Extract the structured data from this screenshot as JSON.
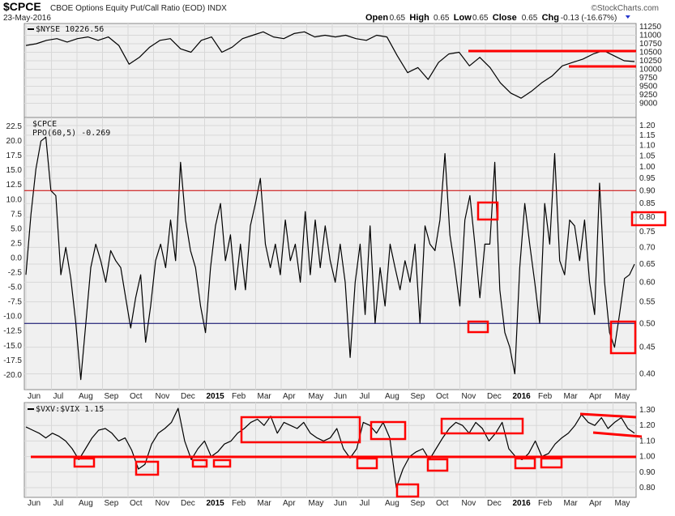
{
  "header": {
    "symbol": "$CPCE",
    "name": "CBOE Options Equity Put/Call Ratio (EOD) INDX",
    "date": "23-May-2016",
    "watermark": "©StockCharts.com",
    "open_label": "Open",
    "open": "0.65",
    "high_label": "High",
    "high": "0.65",
    "low_label": "Low",
    "low": "0.65",
    "close_label": "Close",
    "close": "0.65",
    "chg_label": "Chg",
    "chg": "-0.13 (-16.67%)"
  },
  "colors": {
    "line": "#000000",
    "annotation": "#ff0000",
    "overbought": "#cc0000",
    "oversold": "#000066",
    "panel_bg": "#f0f0f0",
    "grid": "#d8d8d8"
  },
  "chart_data": [
    {
      "type": "line",
      "title": "$NYSE 10226.56",
      "legend": "$NYSE 10226.56",
      "x_start": "2014-06-02",
      "x_end": "2016-05-23",
      "ylim": [
        8950,
        11300
      ],
      "yticks": [
        "11250",
        "11000",
        "10750",
        "10500",
        "10250",
        "10000",
        "9750",
        "9500",
        "9250",
        "9000"
      ],
      "values": [
        10700,
        10750,
        10850,
        10900,
        10800,
        10900,
        10950,
        10850,
        10950,
        10700,
        10150,
        10350,
        10650,
        10850,
        10900,
        10600,
        10500,
        10850,
        10950,
        10500,
        10650,
        10900,
        11000,
        11100,
        10950,
        10900,
        11050,
        11100,
        10950,
        11000,
        10950,
        11000,
        10900,
        10850,
        11000,
        10950,
        10400,
        9900,
        10050,
        9700,
        10200,
        10450,
        10500,
        10100,
        10350,
        10050,
        9600,
        9300,
        9150,
        9350,
        9600,
        9800,
        10100,
        10200,
        10300,
        10450,
        10550,
        10400,
        10250,
        10226
      ],
      "annotations": [
        {
          "type": "hline",
          "value": 10650,
          "from": "2015-11"
        },
        {
          "type": "hline",
          "value": 10250,
          "from": "2016-03"
        }
      ]
    },
    {
      "type": "line",
      "title": "$CPCE",
      "legend": [
        "$CPCE",
        "PPO(60,5) -0.269"
      ],
      "scale": "log",
      "ylim": [
        0.38,
        1.22
      ],
      "yticks_right": [
        "1.20",
        "1.15",
        "1.10",
        "1.05",
        "1.00",
        "0.95",
        "0.90",
        "0.85",
        "0.80",
        "0.75",
        "0.70",
        "0.65",
        "0.60",
        "0.55",
        "0.50",
        "0.45",
        "0.40"
      ],
      "yticks_left": [
        "22.5",
        "20.0",
        "17.5",
        "15.0",
        "12.5",
        "10.0",
        "7.5",
        "5.0",
        "2.5",
        "0.0",
        "-2.5",
        "-5.0",
        "-7.5",
        "-10.0",
        "-12.5",
        "-15.0",
        "-17.5",
        "-20.0"
      ],
      "overbought_line": 0.9,
      "oversold_line": 0.5,
      "values": [
        0.62,
        0.81,
        0.99,
        1.12,
        1.14,
        0.9,
        0.88,
        0.62,
        0.7,
        0.61,
        0.5,
        0.39,
        0.5,
        0.64,
        0.71,
        0.66,
        0.6,
        0.69,
        0.66,
        0.64,
        0.56,
        0.49,
        0.56,
        0.62,
        0.46,
        0.54,
        0.66,
        0.71,
        0.64,
        0.79,
        0.66,
        1.02,
        0.79,
        0.69,
        0.64,
        0.54,
        0.48,
        0.64,
        0.77,
        0.85,
        0.66,
        0.74,
        0.58,
        0.71,
        0.58,
        0.77,
        0.85,
        0.95,
        0.71,
        0.64,
        0.71,
        0.62,
        0.79,
        0.66,
        0.71,
        0.6,
        0.82,
        0.62,
        0.79,
        0.64,
        0.77,
        0.66,
        0.6,
        0.71,
        0.6,
        0.43,
        0.6,
        0.71,
        0.52,
        0.77,
        0.5,
        0.64,
        0.54,
        0.71,
        0.64,
        0.58,
        0.66,
        0.6,
        0.71,
        0.5,
        0.77,
        0.71,
        0.69,
        0.79,
        1.06,
        0.74,
        0.64,
        0.54,
        0.79,
        0.88,
        0.71,
        0.56,
        0.71,
        0.71,
        1.02,
        0.58,
        0.48,
        0.45,
        0.4,
        0.64,
        0.85,
        0.71,
        0.6,
        0.5,
        0.85,
        0.71,
        1.06,
        0.66,
        0.62,
        0.79,
        0.77,
        0.66,
        0.79,
        0.6,
        0.52,
        0.93,
        0.6,
        0.48,
        0.45,
        0.52,
        0.61,
        0.62,
        0.65
      ]
    },
    {
      "type": "line",
      "title": "$VXV:$VIX 1.15",
      "legend": "$VXV:$VIX 1.15",
      "ylim": [
        0.73,
        1.33
      ],
      "yticks": [
        "1.30",
        "1.20",
        "1.10",
        "1.00",
        "0.90",
        "0.80"
      ],
      "support_line": 1.0,
      "values": [
        1.19,
        1.17,
        1.15,
        1.12,
        1.15,
        1.13,
        1.1,
        1.05,
        0.98,
        1.05,
        1.12,
        1.17,
        1.18,
        1.15,
        1.1,
        1.12,
        1.04,
        0.92,
        0.95,
        1.08,
        1.15,
        1.18,
        1.22,
        1.31,
        1.1,
        0.98,
        1.05,
        1.1,
        1.0,
        1.03,
        1.08,
        1.1,
        1.15,
        1.18,
        1.22,
        1.24,
        1.2,
        1.26,
        1.15,
        1.22,
        1.2,
        1.18,
        1.22,
        1.15,
        1.12,
        1.1,
        1.12,
        1.18,
        1.05,
        0.99,
        1.05,
        1.22,
        1.2,
        1.15,
        1.22,
        1.12,
        0.8,
        0.92,
        1.0,
        1.03,
        1.05,
        0.98,
        1.05,
        1.12,
        1.18,
        1.22,
        1.2,
        1.15,
        1.22,
        1.18,
        1.1,
        1.15,
        1.22,
        1.05,
        1.0,
        0.98,
        1.02,
        1.1,
        1.0,
        1.02,
        1.08,
        1.12,
        1.15,
        1.2,
        1.27,
        1.22,
        1.2,
        1.25,
        1.18,
        1.22,
        1.25,
        1.18,
        1.15
      ]
    }
  ],
  "x_axis": {
    "labels": [
      "Jun",
      "Jul",
      "Aug",
      "Sep",
      "Oct",
      "Nov",
      "Dec",
      "2015",
      "Feb",
      "Mar",
      "Apr",
      "May",
      "Jun",
      "Jul",
      "Aug",
      "Sep",
      "Oct",
      "Nov",
      "Dec",
      "2016",
      "Feb",
      "Mar",
      "Apr",
      "May"
    ]
  }
}
